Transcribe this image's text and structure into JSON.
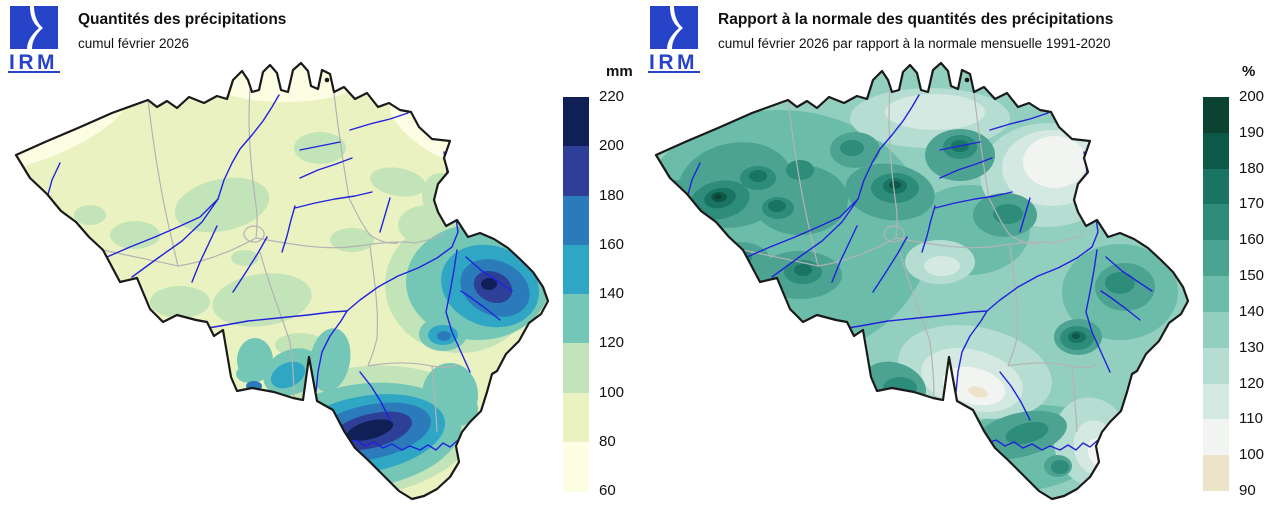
{
  "left_panel": {
    "logo_text": "IRM",
    "title": "Quantités des précipitations",
    "subtitle": "cumul février 2026",
    "scale": {
      "unit": "mm",
      "ticks": [
        "220",
        "200",
        "180",
        "160",
        "140",
        "120",
        "100",
        "80",
        "60"
      ],
      "colors": [
        "#101f55",
        "#2d3f97",
        "#2b7ab9",
        "#2fa6c3",
        "#74c7b6",
        "#c3e4b8",
        "#ebf2c2",
        "#fdfde4"
      ]
    }
  },
  "right_panel": {
    "logo_text": "IRM",
    "title": "Rapport à la normale des quantités des précipitations",
    "subtitle": "cumul février 2026 par rapport à la normale mensuelle 1991-2020",
    "scale": {
      "unit": "%",
      "ticks": [
        "200",
        "190",
        "180",
        "170",
        "160",
        "150",
        "140",
        "130",
        "120",
        "110",
        "100",
        "90"
      ],
      "colors": [
        "#0b4232",
        "#0e5847",
        "#1a7463",
        "#2d8d7a",
        "#4da392",
        "#6cbcaa",
        "#92cfbf",
        "#b6ddd1",
        "#d3e9e1",
        "#f1f4f1",
        "#ece3c8"
      ]
    }
  },
  "map": {
    "river_color": "#2222dd",
    "province_border_color": "#b3b3b3",
    "country_border_color": "#1a1a1a",
    "sea_color": "#ffffff",
    "logo_color": "#2744c9"
  }
}
